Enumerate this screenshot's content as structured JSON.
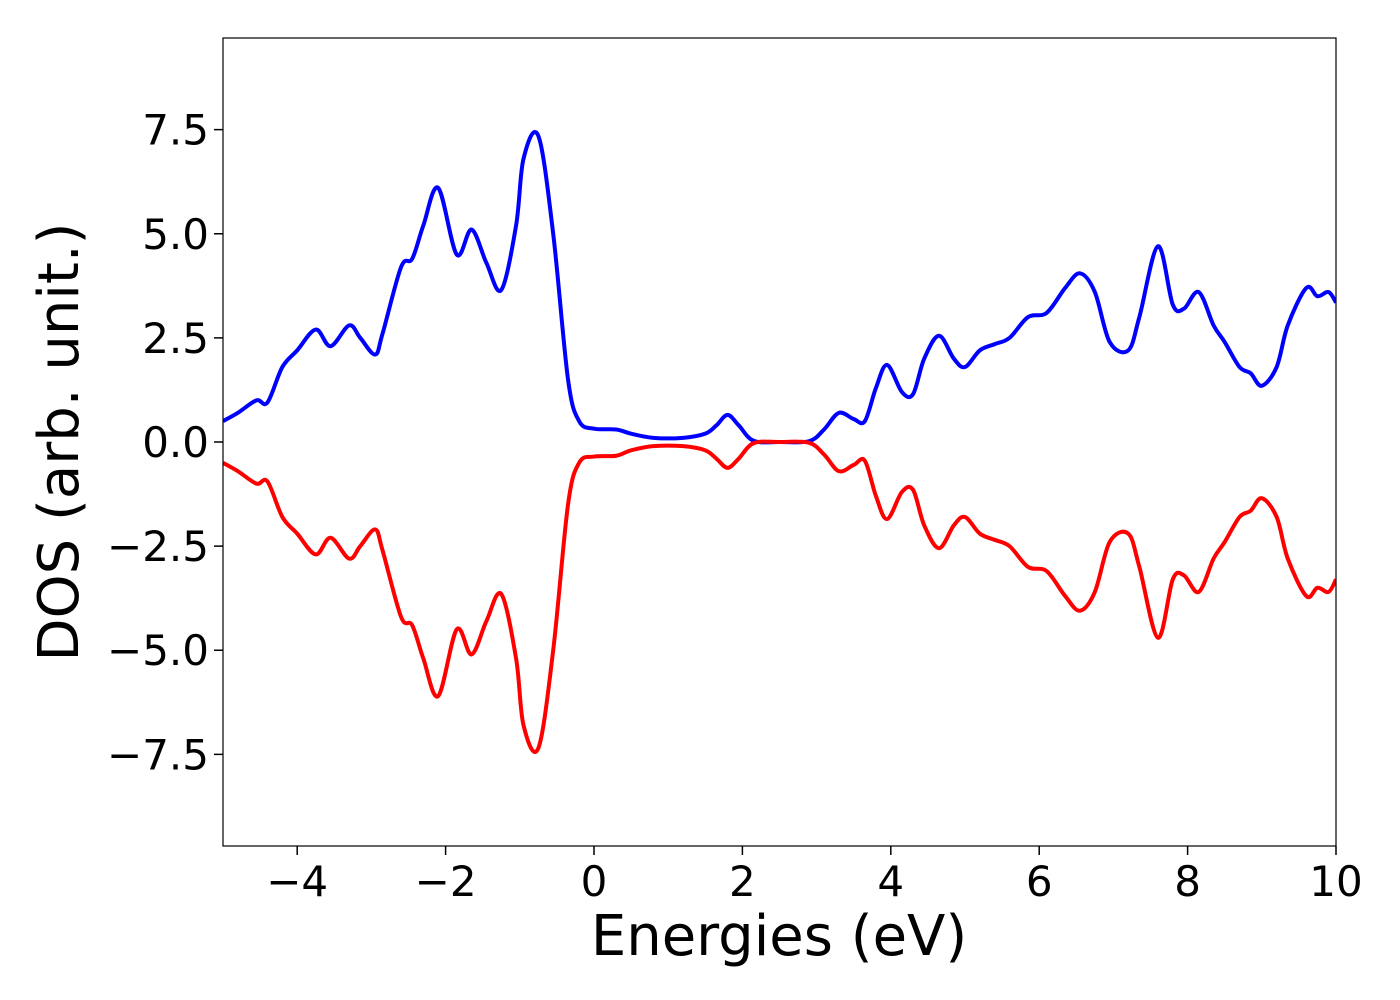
{
  "chart_data": {
    "type": "line",
    "title": "",
    "xlabel": "Energies (eV)",
    "ylabel": "DOS (arb. unit.)",
    "xlim": [
      -5,
      10
    ],
    "ylim": [
      -9.7,
      9.7
    ],
    "grid": false,
    "legend": "none",
    "x_ticks": [
      -4,
      -2,
      0,
      2,
      4,
      6,
      8,
      10
    ],
    "x_tick_labels": [
      "−4",
      "−2",
      "0",
      "2",
      "4",
      "6",
      "8",
      "10"
    ],
    "y_ticks": [
      7.5,
      5.0,
      2.5,
      0.0,
      -2.5,
      -5.0,
      -7.5
    ],
    "y_tick_labels": [
      "7.5",
      "5.0",
      "2.5",
      "0.0",
      "−2.5",
      "−5.0",
      "−7.5"
    ],
    "series": [
      {
        "color": "#0000ff",
        "x": [
          -5.0,
          -4.8,
          -4.55,
          -4.4,
          -4.2,
          -4.0,
          -3.75,
          -3.55,
          -3.3,
          -3.15,
          -2.95,
          -2.85,
          -2.6,
          -2.45,
          -2.3,
          -2.1,
          -1.85,
          -1.65,
          -1.45,
          -1.25,
          -1.05,
          -0.95,
          -0.75,
          -0.55,
          -0.35,
          -0.2,
          0.0,
          0.3,
          0.5,
          0.8,
          1.2,
          1.5,
          1.65,
          1.8,
          1.95,
          2.15,
          2.5,
          2.9,
          3.1,
          3.3,
          3.5,
          3.65,
          3.8,
          3.95,
          4.15,
          4.3,
          4.45,
          4.65,
          4.85,
          5.0,
          5.2,
          5.4,
          5.6,
          5.85,
          6.1,
          6.35,
          6.55,
          6.75,
          6.95,
          7.2,
          7.35,
          7.6,
          7.8,
          7.95,
          8.15,
          8.35,
          8.5,
          8.7,
          8.85,
          9.0,
          9.2,
          9.35,
          9.6,
          9.75,
          9.9,
          10.0
        ],
        "y": [
          0.5,
          0.7,
          1.0,
          0.95,
          1.8,
          2.2,
          2.7,
          2.3,
          2.8,
          2.5,
          2.1,
          2.6,
          4.2,
          4.4,
          5.2,
          6.1,
          4.5,
          5.1,
          4.3,
          3.65,
          5.2,
          6.8,
          7.35,
          5.0,
          1.5,
          0.5,
          0.32,
          0.3,
          0.2,
          0.1,
          0.1,
          0.2,
          0.4,
          0.65,
          0.4,
          0.03,
          0.0,
          0.02,
          0.3,
          0.7,
          0.55,
          0.5,
          1.3,
          1.85,
          1.2,
          1.15,
          2.0,
          2.55,
          2.0,
          1.8,
          2.2,
          2.35,
          2.5,
          3.0,
          3.1,
          3.7,
          4.05,
          3.6,
          2.4,
          2.2,
          3.0,
          4.7,
          3.3,
          3.2,
          3.6,
          2.8,
          2.4,
          1.8,
          1.65,
          1.35,
          1.8,
          2.8,
          3.7,
          3.5,
          3.6,
          3.35
        ]
      },
      {
        "color": "#ff0000",
        "x": [
          -5.0,
          -4.8,
          -4.55,
          -4.4,
          -4.2,
          -4.0,
          -3.75,
          -3.55,
          -3.3,
          -3.15,
          -2.95,
          -2.85,
          -2.6,
          -2.45,
          -2.3,
          -2.1,
          -1.85,
          -1.65,
          -1.45,
          -1.25,
          -1.05,
          -0.95,
          -0.75,
          -0.55,
          -0.35,
          -0.2,
          0.0,
          0.3,
          0.5,
          0.8,
          1.2,
          1.5,
          1.65,
          1.8,
          1.95,
          2.15,
          2.5,
          2.9,
          3.1,
          3.3,
          3.5,
          3.65,
          3.8,
          3.95,
          4.15,
          4.3,
          4.45,
          4.65,
          4.85,
          5.0,
          5.2,
          5.4,
          5.6,
          5.85,
          6.1,
          6.35,
          6.55,
          6.75,
          6.95,
          7.2,
          7.35,
          7.6,
          7.8,
          7.95,
          8.15,
          8.35,
          8.5,
          8.7,
          8.85,
          9.0,
          9.2,
          9.35,
          9.6,
          9.75,
          9.9,
          10.0
        ],
        "y": [
          -0.5,
          -0.7,
          -1.0,
          -0.95,
          -1.8,
          -2.2,
          -2.7,
          -2.3,
          -2.8,
          -2.5,
          -2.1,
          -2.6,
          -4.2,
          -4.4,
          -5.2,
          -6.1,
          -4.5,
          -5.1,
          -4.3,
          -3.65,
          -5.2,
          -6.8,
          -7.35,
          -5.0,
          -1.5,
          -0.5,
          -0.35,
          -0.33,
          -0.2,
          -0.1,
          -0.1,
          -0.2,
          -0.4,
          -0.62,
          -0.4,
          -0.03,
          0.0,
          -0.02,
          -0.3,
          -0.7,
          -0.55,
          -0.45,
          -1.3,
          -1.85,
          -1.2,
          -1.15,
          -2.0,
          -2.55,
          -2.0,
          -1.8,
          -2.2,
          -2.35,
          -2.5,
          -3.0,
          -3.1,
          -3.7,
          -4.05,
          -3.6,
          -2.4,
          -2.2,
          -3.0,
          -4.7,
          -3.3,
          -3.2,
          -3.6,
          -2.8,
          -2.4,
          -1.8,
          -1.65,
          -1.35,
          -1.8,
          -2.8,
          -3.7,
          -3.5,
          -3.6,
          -3.3
        ]
      }
    ]
  }
}
